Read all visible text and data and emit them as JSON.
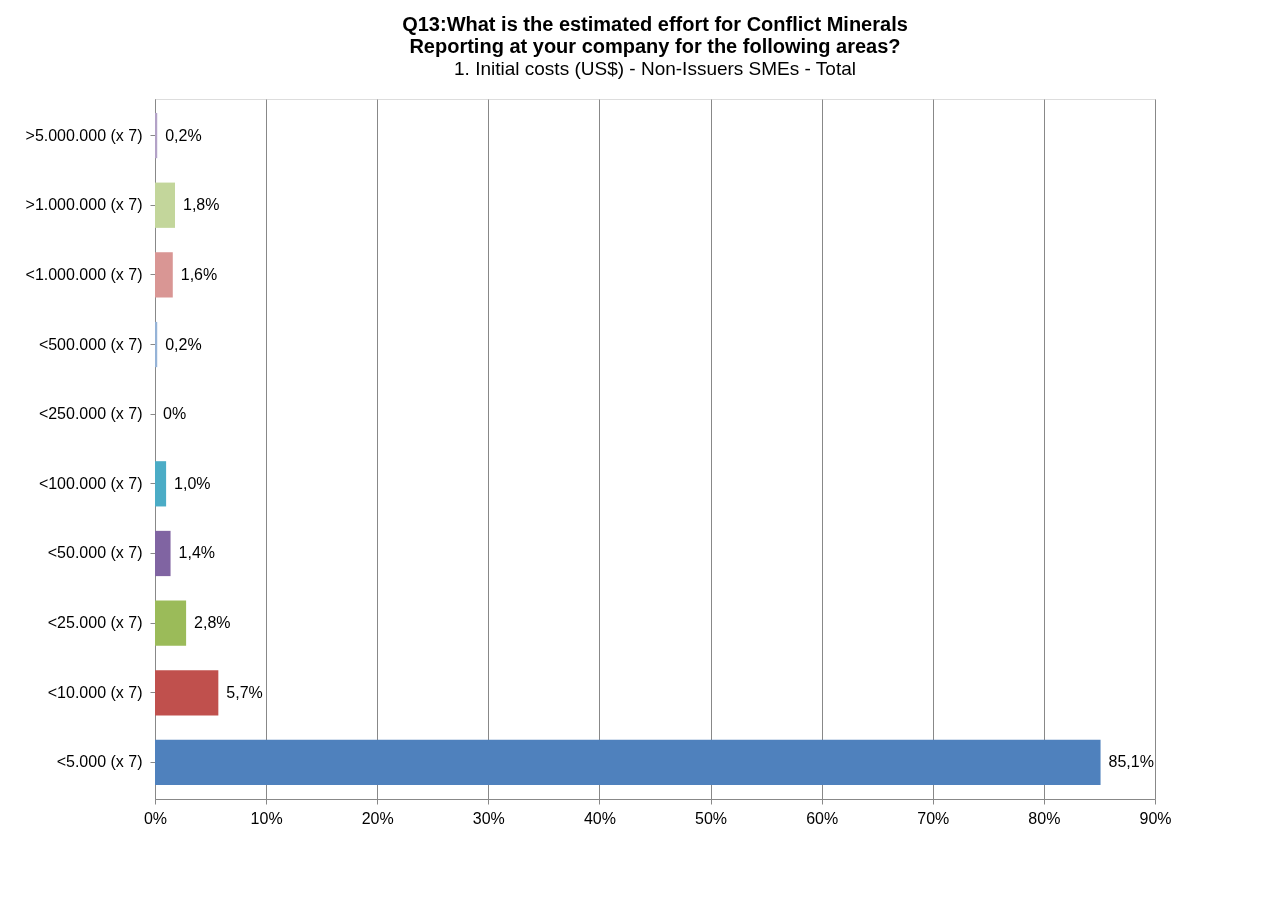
{
  "chart_data": {
    "type": "bar",
    "orientation": "horizontal",
    "title": "Q13:What is the estimated effort for Conflict Minerals Reporting at your company for the following areas?",
    "subtitle": "1. Initial costs (US$) - Non-Issuers SMEs - Total",
    "categories": [
      ">5.000.000 (x 7)",
      ">1.000.000 (x 7)",
      "<1.000.000 (x 7)",
      "<500.000 (x 7)",
      "<250.000 (x 7)",
      "<100.000 (x 7)",
      "<50.000 (x 7)",
      "<25.000 (x 7)",
      "<10.000 (x 7)",
      "<5.000 (x 7)"
    ],
    "values": [
      0.2,
      1.8,
      1.6,
      0.2,
      0,
      1.0,
      1.4,
      2.8,
      5.7,
      85.1
    ],
    "colors": [
      "#b3a2c7",
      "#c3d69b",
      "#d99694",
      "#95b3d7",
      "#f79646",
      "#4bacc6",
      "#8064a2",
      "#9bbb59",
      "#c0504d",
      "#4f81bd"
    ],
    "value_labels": [
      "0,2%",
      "1,8%",
      "1,6%",
      "0,2%",
      "0%",
      "1,0%",
      "1,4%",
      "2,8%",
      "5,7%",
      "85,1%"
    ],
    "xlim": [
      0,
      90
    ],
    "xticks": [
      {
        "value": 0,
        "label": "0%"
      },
      {
        "value": 10,
        "label": "10%"
      },
      {
        "value": 20,
        "label": "20%"
      },
      {
        "value": 30,
        "label": "30%"
      },
      {
        "value": 40,
        "label": "40%"
      },
      {
        "value": 50,
        "label": "50%"
      },
      {
        "value": 60,
        "label": "60%"
      },
      {
        "value": 70,
        "label": "70%"
      },
      {
        "value": 80,
        "label": "80%"
      },
      {
        "value": 90,
        "label": "90%"
      }
    ],
    "grid": "x"
  }
}
